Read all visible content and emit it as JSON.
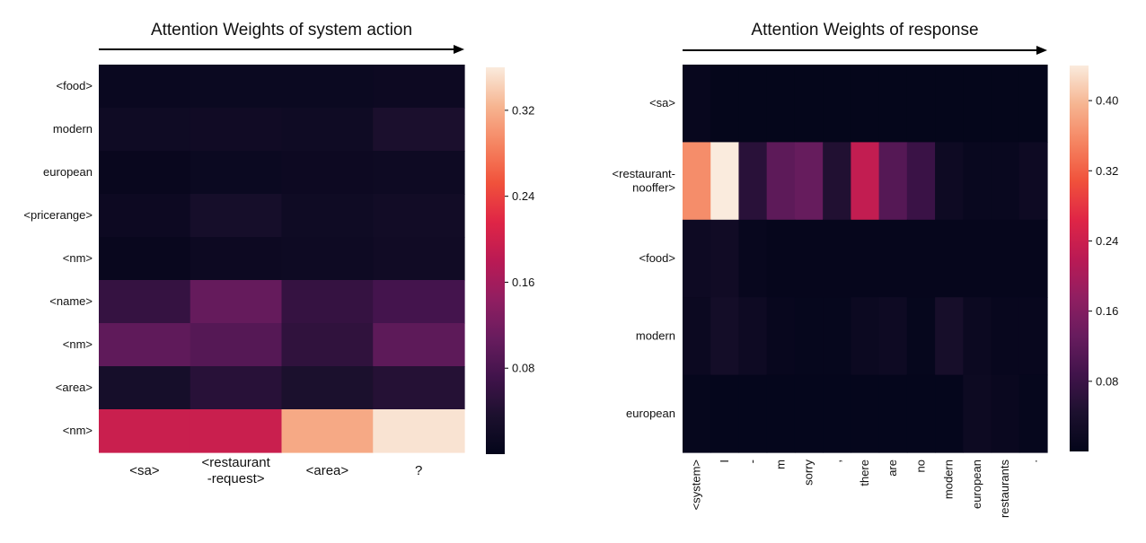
{
  "chart_data": [
    {
      "type": "heatmap",
      "title": "Attention Weights of system action",
      "x_categories": [
        "<sa>",
        "<restaurant\n-request>",
        "<area>",
        "?"
      ],
      "y_categories": [
        "<food>",
        "modern",
        "european",
        "<pricerange>",
        "<nm>",
        "<name>",
        "<nm>",
        "<area>",
        "<nm>"
      ],
      "values": [
        [
          0.01,
          0.012,
          0.012,
          0.014
        ],
        [
          0.018,
          0.02,
          0.018,
          0.034
        ],
        [
          0.008,
          0.012,
          0.014,
          0.016
        ],
        [
          0.014,
          0.028,
          0.018,
          0.022
        ],
        [
          0.008,
          0.014,
          0.016,
          0.02
        ],
        [
          0.06,
          0.105,
          0.06,
          0.075
        ],
        [
          0.1,
          0.09,
          0.055,
          0.098
        ],
        [
          0.028,
          0.048,
          0.035,
          0.045
        ],
        [
          0.195,
          0.195,
          0.315,
          0.355
        ]
      ],
      "colorbar": {
        "min": 0.0,
        "max": 0.36,
        "ticks": [
          0.08,
          0.16,
          0.24,
          0.32
        ],
        "tick_labels": [
          "0.08",
          "0.16",
          "0.24",
          "0.32"
        ]
      },
      "colormap": "rocket"
    },
    {
      "type": "heatmap",
      "title": "Attention Weights of response",
      "x_categories": [
        "<system>",
        "I",
        "-",
        "m",
        "sorry",
        ",",
        "there",
        "are",
        "no",
        "modern",
        "european",
        "restaurants",
        "."
      ],
      "y_categories": [
        "<sa>",
        "<restaurant-\nnooffer>",
        "<food>",
        "modern",
        "european"
      ],
      "values": [
        [
          0.008,
          0.003,
          0.003,
          0.003,
          0.003,
          0.003,
          0.003,
          0.003,
          0.003,
          0.003,
          0.003,
          0.003,
          0.003
        ],
        [
          0.36,
          0.44,
          0.06,
          0.12,
          0.13,
          0.05,
          0.23,
          0.11,
          0.08,
          0.02,
          0.01,
          0.01,
          0.02
        ],
        [
          0.02,
          0.025,
          0.008,
          0.005,
          0.005,
          0.005,
          0.005,
          0.005,
          0.005,
          0.005,
          0.005,
          0.005,
          0.005
        ],
        [
          0.015,
          0.03,
          0.02,
          0.008,
          0.006,
          0.006,
          0.015,
          0.02,
          0.006,
          0.035,
          0.015,
          0.008,
          0.008
        ],
        [
          0.006,
          0.004,
          0.004,
          0.004,
          0.004,
          0.004,
          0.004,
          0.004,
          0.004,
          0.004,
          0.018,
          0.012,
          0.006
        ]
      ],
      "colorbar": {
        "min": 0.0,
        "max": 0.44,
        "ticks": [
          0.08,
          0.16,
          0.24,
          0.32,
          0.4
        ],
        "tick_labels": [
          "0.08",
          "0.16",
          "0.24",
          "0.32",
          "0.40"
        ]
      },
      "colormap": "rocket"
    }
  ]
}
